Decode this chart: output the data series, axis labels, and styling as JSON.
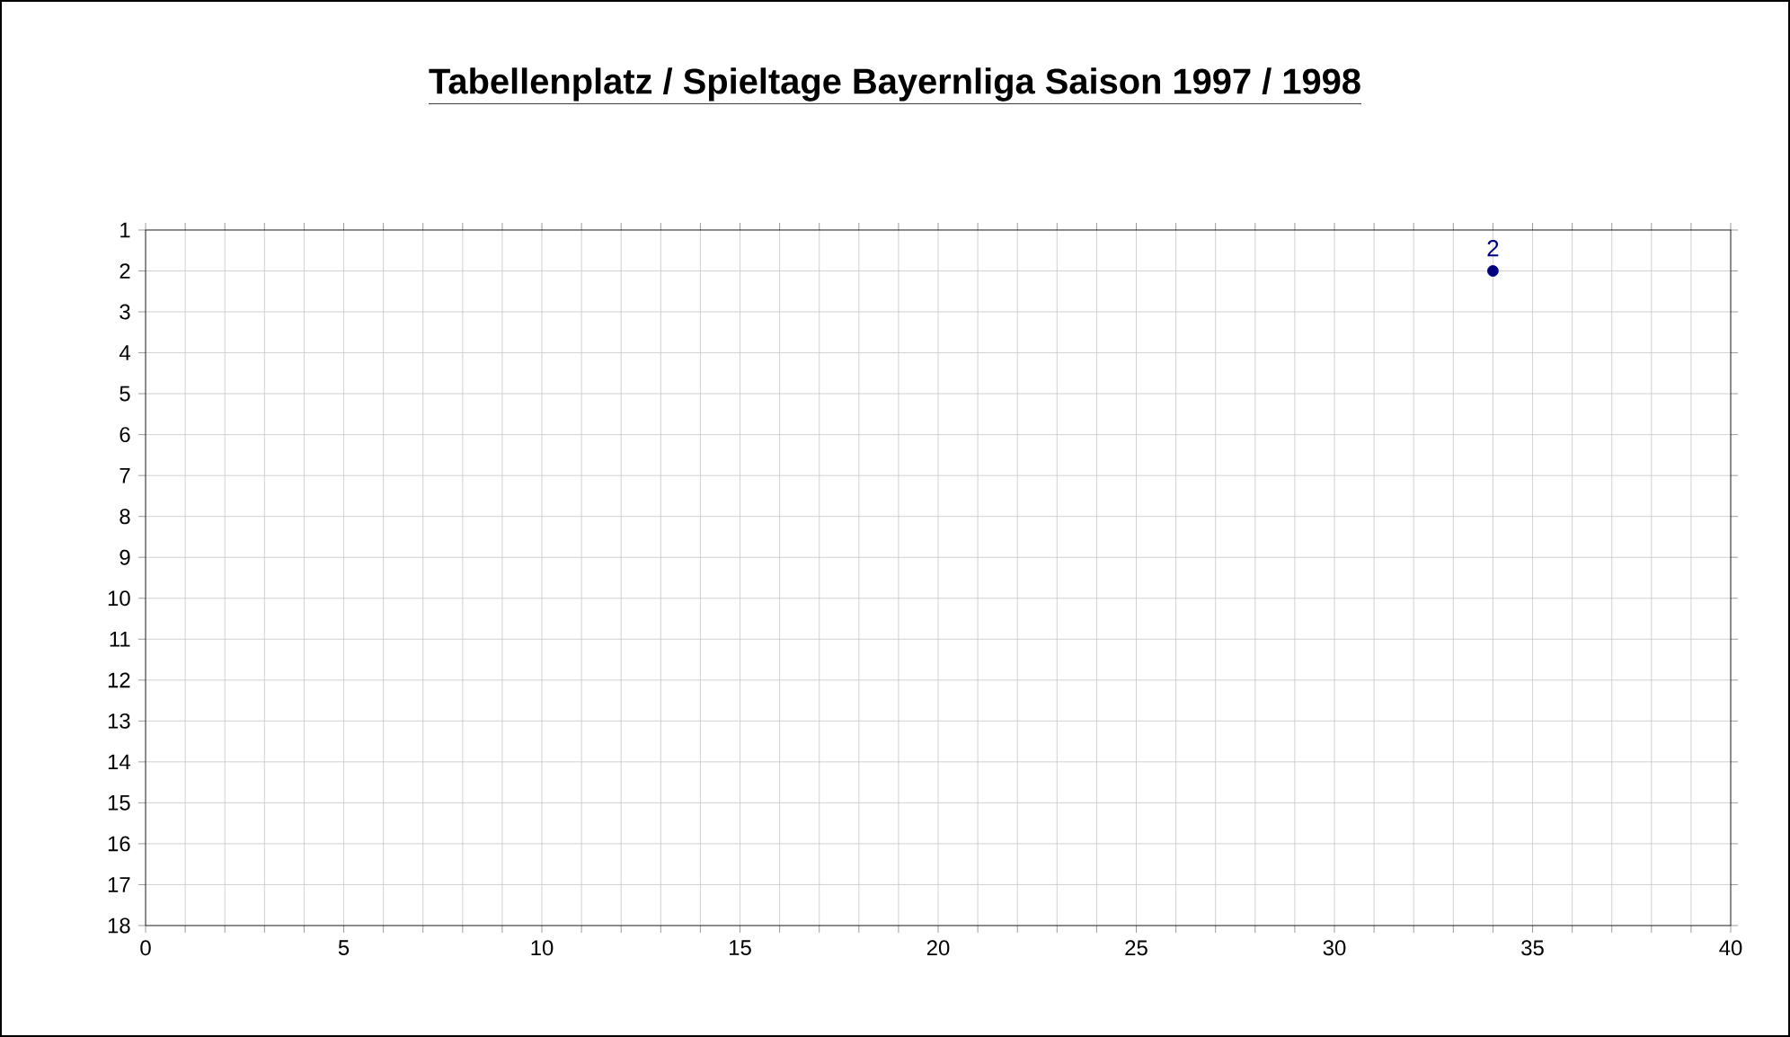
{
  "chart_data": {
    "type": "scatter",
    "title": "Tabellenplatz / Spieltage Bayernliga Saison 1997 / 1998",
    "x": [
      34
    ],
    "values": [
      2
    ],
    "color": "#000080",
    "marker": "circle",
    "data_labels": true,
    "xlim": [
      0,
      40
    ],
    "xticks": [
      0,
      {
        "value": 1,
        "label": null
      },
      {
        "value": 2,
        "label": null
      },
      {
        "value": 3,
        "label": null
      },
      {
        "value": 4,
        "label": null
      },
      5,
      {
        "value": 6,
        "label": null
      },
      {
        "value": 7,
        "label": null
      },
      {
        "value": 8,
        "label": null
      },
      {
        "value": 9,
        "label": null
      },
      10,
      {
        "value": 11,
        "label": null
      },
      {
        "value": 12,
        "label": null
      },
      {
        "value": 13,
        "label": null
      },
      {
        "value": 14,
        "label": null
      },
      15,
      {
        "value": 16,
        "label": null
      },
      {
        "value": 17,
        "label": null
      },
      {
        "value": 18,
        "label": null
      },
      {
        "value": 19,
        "label": null
      },
      20,
      {
        "value": 21,
        "label": null
      },
      {
        "value": 22,
        "label": null
      },
      {
        "value": 23,
        "label": null
      },
      {
        "value": 24,
        "label": null
      },
      25,
      {
        "value": 26,
        "label": null
      },
      {
        "value": 27,
        "label": null
      },
      {
        "value": 28,
        "label": null
      },
      {
        "value": 29,
        "label": null
      },
      30,
      {
        "value": 31,
        "label": null
      },
      {
        "value": 32,
        "label": null
      },
      {
        "value": 33,
        "label": null
      },
      {
        "value": 34,
        "label": null
      },
      35,
      {
        "value": 36,
        "label": null
      },
      {
        "value": 37,
        "label": null
      },
      {
        "value": 38,
        "label": null
      },
      {
        "value": 39,
        "label": null
      },
      40
    ],
    "ylim": [
      18,
      1
    ],
    "yticks": [
      1,
      2,
      3,
      4,
      5,
      6,
      7,
      8,
      9,
      10,
      11,
      12,
      13,
      14,
      15,
      16,
      17,
      18
    ],
    "grid": true
  }
}
